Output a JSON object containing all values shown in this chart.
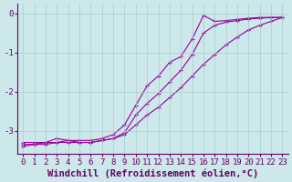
{
  "xlabel": "Windchill (Refroidissement éolien,°C)",
  "ylabel": "",
  "bg_color": "#cce8ea",
  "line_color": "#990099",
  "grid_color": "#aacccc",
  "x_min": -0.5,
  "x_max": 23.5,
  "y_min": -3.6,
  "y_max": 0.25,
  "x_ticks": [
    0,
    1,
    2,
    3,
    4,
    5,
    6,
    7,
    8,
    9,
    10,
    11,
    12,
    13,
    14,
    15,
    16,
    17,
    18,
    19,
    20,
    21,
    22,
    23
  ],
  "y_ticks": [
    0,
    -1,
    -2,
    -3
  ],
  "line_spike_x": [
    0,
    1,
    2,
    3,
    4,
    5,
    6,
    7,
    8,
    9,
    10,
    11,
    12,
    13,
    14,
    15,
    16,
    17,
    18,
    19,
    20,
    21,
    22,
    23
  ],
  "line_spike_y": [
    -3.3,
    -3.3,
    -3.3,
    -3.2,
    -3.25,
    -3.25,
    -3.25,
    -3.2,
    -3.1,
    -2.85,
    -2.35,
    -1.85,
    -1.6,
    -1.25,
    -1.1,
    -0.65,
    -0.05,
    -0.2,
    -0.18,
    -0.15,
    -0.12,
    -0.1,
    -0.1,
    -0.1
  ],
  "line_middle_x": [
    0,
    1,
    2,
    3,
    4,
    5,
    6,
    7,
    8,
    9,
    10,
    11,
    12,
    13,
    14,
    15,
    16,
    17,
    18,
    19,
    20,
    21,
    22,
    23
  ],
  "line_middle_y": [
    -3.35,
    -3.35,
    -3.3,
    -3.3,
    -3.25,
    -3.3,
    -3.3,
    -3.25,
    -3.2,
    -3.05,
    -2.6,
    -2.3,
    -2.05,
    -1.75,
    -1.45,
    -1.05,
    -0.5,
    -0.3,
    -0.22,
    -0.18,
    -0.14,
    -0.12,
    -0.1,
    -0.1
  ],
  "line_linear_x": [
    0,
    1,
    2,
    3,
    4,
    5,
    6,
    7,
    8,
    9,
    10,
    11,
    12,
    13,
    14,
    15,
    16,
    17,
    18,
    19,
    20,
    21,
    22,
    23
  ],
  "line_linear_y": [
    -3.4,
    -3.35,
    -3.35,
    -3.3,
    -3.3,
    -3.3,
    -3.3,
    -3.25,
    -3.2,
    -3.1,
    -2.85,
    -2.6,
    -2.4,
    -2.15,
    -1.9,
    -1.6,
    -1.3,
    -1.05,
    -0.8,
    -0.6,
    -0.42,
    -0.3,
    -0.2,
    -0.1
  ],
  "axis_color": "#660066",
  "tick_fontsize": 6.5,
  "label_fontsize": 7.5
}
